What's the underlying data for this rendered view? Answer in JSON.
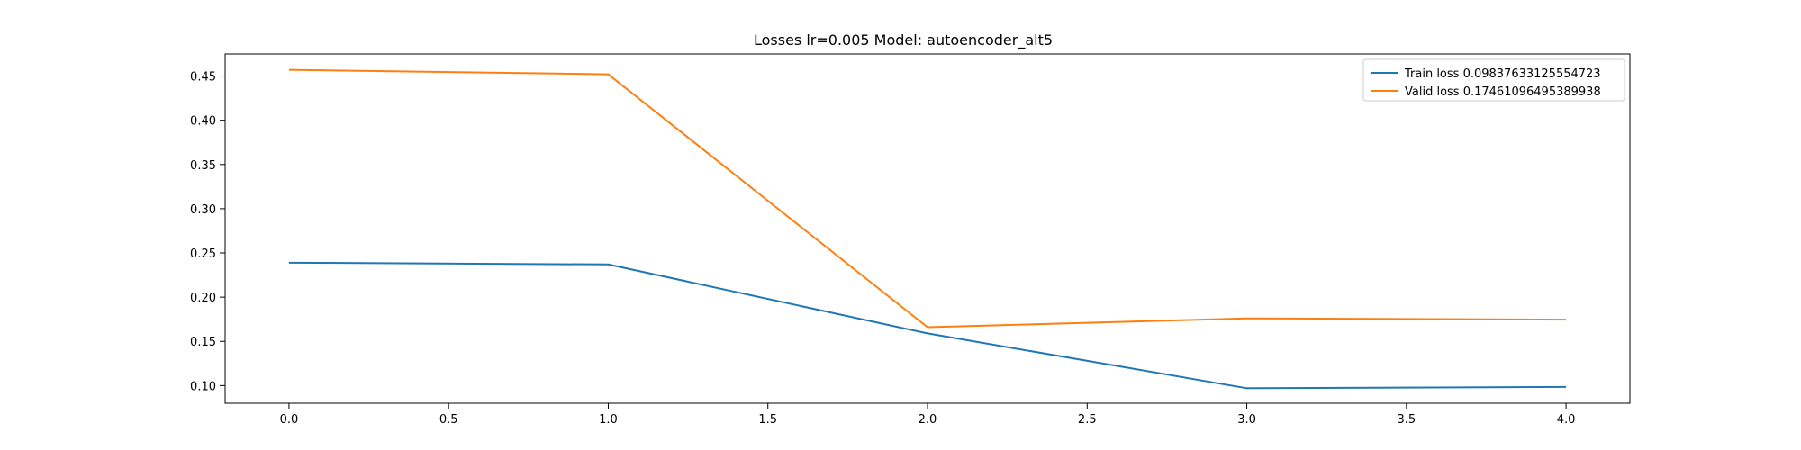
{
  "chart_data": {
    "type": "line",
    "title": "Losses lr=0.005 Model: autoencoder_alt5",
    "xlabel": "",
    "ylabel": "",
    "xlim": [
      -0.2,
      4.2
    ],
    "ylim": [
      0.08,
      0.475
    ],
    "xticks": [
      0.0,
      0.5,
      1.0,
      1.5,
      2.0,
      2.5,
      3.0,
      3.5,
      4.0
    ],
    "xtick_labels": [
      "0.0",
      "0.5",
      "1.0",
      "1.5",
      "2.0",
      "2.5",
      "3.0",
      "3.5",
      "4.0"
    ],
    "yticks": [
      0.1,
      0.15,
      0.2,
      0.25,
      0.3,
      0.35,
      0.4,
      0.45
    ],
    "ytick_labels": [
      "0.10",
      "0.15",
      "0.20",
      "0.25",
      "0.30",
      "0.35",
      "0.40",
      "0.45"
    ],
    "grid": false,
    "legend_position": "top-right",
    "x": [
      0,
      1,
      2,
      3,
      4
    ],
    "series": [
      {
        "name": "Train loss 0.09837633125554723",
        "color": "#1f77b4",
        "values": [
          0.239,
          0.237,
          0.159,
          0.097,
          0.0984
        ]
      },
      {
        "name": "Valid loss 0.17461096495389938",
        "color": "#ff7f0e",
        "values": [
          0.457,
          0.452,
          0.166,
          0.176,
          0.1746
        ]
      }
    ]
  }
}
